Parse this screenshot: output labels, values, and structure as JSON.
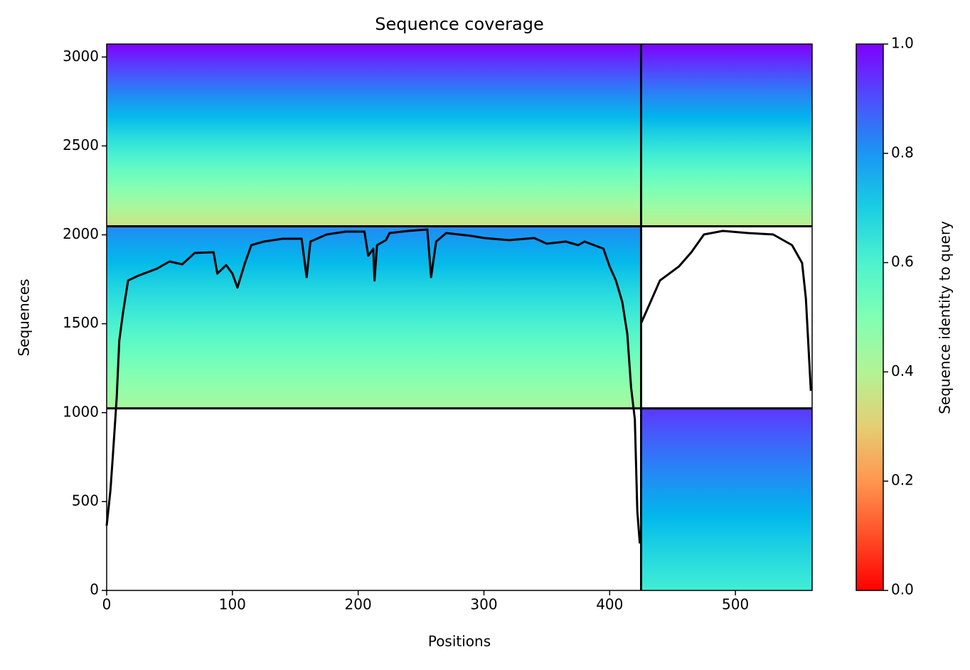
{
  "chart_data": {
    "type": "heatmap",
    "title": "Sequence coverage",
    "xlabel": "Positions",
    "ylabel": "Sequences",
    "xlim": [
      0,
      561
    ],
    "ylim": [
      0,
      3073
    ],
    "xticks": [
      0,
      100,
      200,
      300,
      400,
      500
    ],
    "yticks": [
      0,
      500,
      1000,
      1500,
      2000,
      2500,
      3000
    ],
    "colormap": "rainbow_r",
    "colorbar": {
      "label": "Sequence identity to query",
      "lim": [
        0,
        1
      ],
      "ticks": [
        {
          "value": 0,
          "label": "0.0"
        },
        {
          "value": 0.2,
          "label": "0.2"
        },
        {
          "value": 0.4,
          "label": "0.4"
        },
        {
          "value": 0.6,
          "label": "0.6"
        },
        {
          "value": 0.8,
          "label": "0.8"
        },
        {
          "value": 1,
          "label": "1.0"
        }
      ]
    },
    "regions": [
      {
        "xlim": [
          0,
          425
        ],
        "ylim": [
          2048,
          3073
        ],
        "identity": [
          0.35,
          1.0
        ]
      },
      {
        "xlim": [
          0,
          425
        ],
        "ylim": [
          1024,
          2048
        ],
        "identity": [
          0.42,
          0.82
        ]
      },
      {
        "xlim": [
          425,
          561
        ],
        "ylim": [
          2048,
          3073
        ],
        "identity": [
          0.38,
          1.0
        ]
      },
      {
        "xlim": [
          425,
          561
        ],
        "ylim": [
          0,
          1024
        ],
        "identity": [
          0.62,
          0.93
        ]
      }
    ],
    "boundaries": {
      "x": [
        425
      ],
      "y": [
        1024,
        2048
      ]
    },
    "line": {
      "color": "#000000",
      "x": [
        0,
        3,
        5,
        8,
        10,
        13,
        17,
        25,
        40,
        50,
        60,
        70,
        85,
        88,
        95,
        100,
        104,
        110,
        115,
        125,
        140,
        155,
        159,
        162,
        175,
        190,
        205,
        208,
        212,
        213,
        215,
        222,
        225,
        240,
        255,
        258,
        262,
        270,
        290,
        300,
        320,
        340,
        350,
        365,
        375,
        380,
        395,
        400,
        405,
        410,
        414,
        417,
        420,
        422,
        424,
        null,
        425,
        430,
        440,
        455,
        465,
        475,
        490,
        510,
        530,
        545,
        553,
        556,
        560
      ],
      "values": [
        364,
        563,
        763,
        1083,
        1403,
        1563,
        1743,
        1770,
        1810,
        1850,
        1834,
        1898,
        1902,
        1782,
        1830,
        1782,
        1703,
        1842,
        1942,
        1962,
        1978,
        1978,
        1762,
        1962,
        2002,
        2018,
        2018,
        1882,
        1922,
        1743,
        1942,
        1970,
        2010,
        2022,
        2030,
        1762,
        1962,
        2010,
        1994,
        1982,
        1970,
        1982,
        1950,
        1962,
        1942,
        1962,
        1922,
        1822,
        1743,
        1623,
        1443,
        1143,
        963,
        444,
        264,
        null,
        1503,
        1583,
        1743,
        1822,
        1902,
        2002,
        2022,
        2010,
        2002,
        1942,
        1842,
        1643,
        1123
      ]
    }
  }
}
